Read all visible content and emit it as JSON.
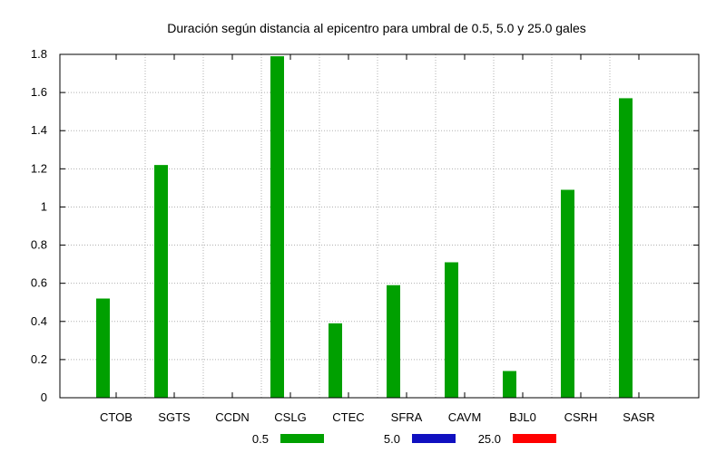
{
  "chart_data": {
    "type": "bar",
    "title": "Duración según distancia al epicentro para umbral de 0.5, 5.0 y 25.0 gales",
    "xlabel": "",
    "ylabel": "",
    "ylim": [
      0,
      1.8
    ],
    "yticks": [
      "0",
      "0.2",
      "0.4",
      "0.6",
      "0.8",
      "1",
      "1.2",
      "1.4",
      "1.6",
      "1.8"
    ],
    "categories": [
      "CTOB",
      "SGTS",
      "CCDN",
      "CSLG",
      "CTEC",
      "SFRA",
      "CAVM",
      "BJL0",
      "CSRH",
      "SASR"
    ],
    "series": [
      {
        "name": "0.5",
        "color": "#00a000",
        "values": [
          0.52,
          1.22,
          0,
          1.79,
          0.39,
          0.59,
          0.71,
          0.14,
          1.09,
          1.57
        ]
      },
      {
        "name": "5.0",
        "color": "#1010c0",
        "values": [
          0,
          0,
          0,
          0,
          0,
          0,
          0,
          0,
          0,
          0
        ]
      },
      {
        "name": "25.0",
        "color": "#ff0000",
        "values": [
          0,
          0,
          0,
          0,
          0,
          0,
          0,
          0,
          0,
          0
        ]
      }
    ],
    "grid": true,
    "legend_position": "bottom"
  }
}
